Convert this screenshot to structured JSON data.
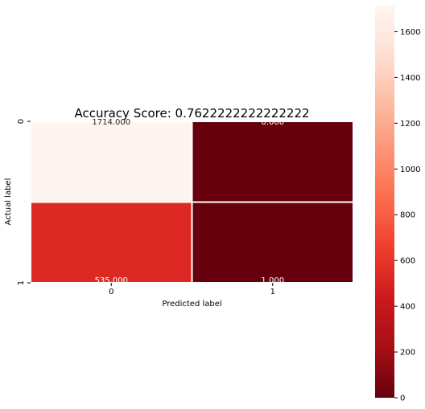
{
  "chart_data": {
    "type": "heatmap",
    "title": "Accuracy Score: 0.7622222222222222",
    "xlabel": "Predicted label",
    "ylabel": "Actual label",
    "x_categories": [
      "0",
      "1"
    ],
    "y_categories": [
      "0",
      "1"
    ],
    "values": [
      [
        1714,
        0
      ],
      [
        535,
        1
      ]
    ],
    "cell_labels": [
      [
        "1714.000",
        "0.000"
      ],
      [
        "535.000",
        "1.000"
      ]
    ],
    "colorbar": {
      "min": 0,
      "max": 1714,
      "ticks": [
        0,
        200,
        400,
        600,
        800,
        1000,
        1200,
        1400,
        1600
      ],
      "colormap": "Reds_r",
      "stops": [
        "#67000d",
        "#a50f15",
        "#cb181d",
        "#ef3b2c",
        "#fb6a4a",
        "#fc9272",
        "#fcbba1",
        "#fee0d2",
        "#fff5f0"
      ]
    },
    "grid": false,
    "cell_border_color": "#ffffff"
  }
}
